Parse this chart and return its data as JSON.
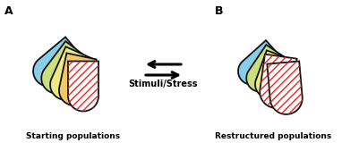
{
  "panel_a_label": "A",
  "panel_b_label": "B",
  "label_a": "Starting populations",
  "label_b": "Restructured populations",
  "arrow_text": "Stimuli/Stress",
  "colors_a": [
    "#87CEEB",
    "#CCDF7F",
    "#EEE885",
    "#F0C96A",
    "#FFFFFF"
  ],
  "colors_b": [
    "#87CEEB",
    "#CCDF7F",
    "#EEE885",
    "#FFFFFF",
    "#FFFFFF"
  ],
  "hatch_color": "#EE2222",
  "background": "#FFFFFF",
  "edge_color": "#111111"
}
